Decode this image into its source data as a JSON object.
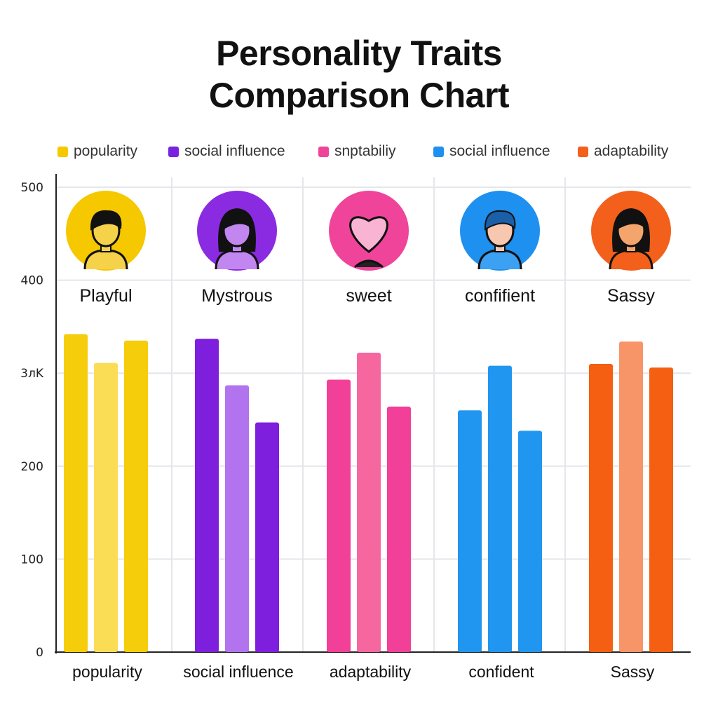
{
  "chart_data": {
    "type": "bar",
    "title": [
      "Personality Traits",
      "Comparison Chart"
    ],
    "legend": [
      {
        "label": "popularity",
        "color": "#f5c800"
      },
      {
        "label": "social influence",
        "color": "#7b22e0"
      },
      {
        "label": "snptabiliy",
        "color": "#f0449a"
      },
      {
        "label": "social influence",
        "color": "#1e90ef"
      },
      {
        "label": "adaptability",
        "color": "#f2601b"
      }
    ],
    "yticks": [
      {
        "value": 0,
        "label": "0"
      },
      {
        "value": 100,
        "label": "100"
      },
      {
        "value": 200,
        "label": "200"
      },
      {
        "value": 300,
        "label": "3лK"
      },
      {
        "value": 400,
        "label": "400"
      },
      {
        "value": 500,
        "label": "500"
      }
    ],
    "ylim": [
      0,
      500
    ],
    "grid": true,
    "legend_position": "top",
    "categories": [
      "popularity",
      "social influence",
      "adaptability",
      "confident",
      "Sassy"
    ],
    "groups": [
      {
        "name": "Playful",
        "icon": "person-icon",
        "colors": [
          "#f5cd0a",
          "#fbdd55",
          "#f5cd0a"
        ],
        "bg": "#f5c800",
        "values": [
          342,
          311,
          335
        ]
      },
      {
        "name": "Mystrous",
        "icon": "person-long-hair-icon",
        "colors": [
          "#7f1fde",
          "#b174ee",
          "#7f1fde"
        ],
        "bg": "#8a2be2",
        "values": [
          337,
          287,
          247
        ]
      },
      {
        "name": "sweet",
        "icon": "heart-icon",
        "colors": [
          "#f23f97",
          "#f7679f",
          "#f23f97"
        ],
        "bg": "#f0449a",
        "values": [
          293,
          322,
          264
        ]
      },
      {
        "name": "confifient",
        "icon": "person-curly-icon",
        "colors": [
          "#2196f0",
          "#2196f0",
          "#2196f0"
        ],
        "bg": "#1e90ef",
        "values": [
          260,
          308,
          238
        ]
      },
      {
        "name": "Sassy",
        "icon": "person-woman-icon",
        "colors": [
          "#f45f12",
          "#f79468",
          "#f45f12"
        ],
        "bg": "#f2601b",
        "values": [
          310,
          334,
          306
        ]
      }
    ]
  }
}
